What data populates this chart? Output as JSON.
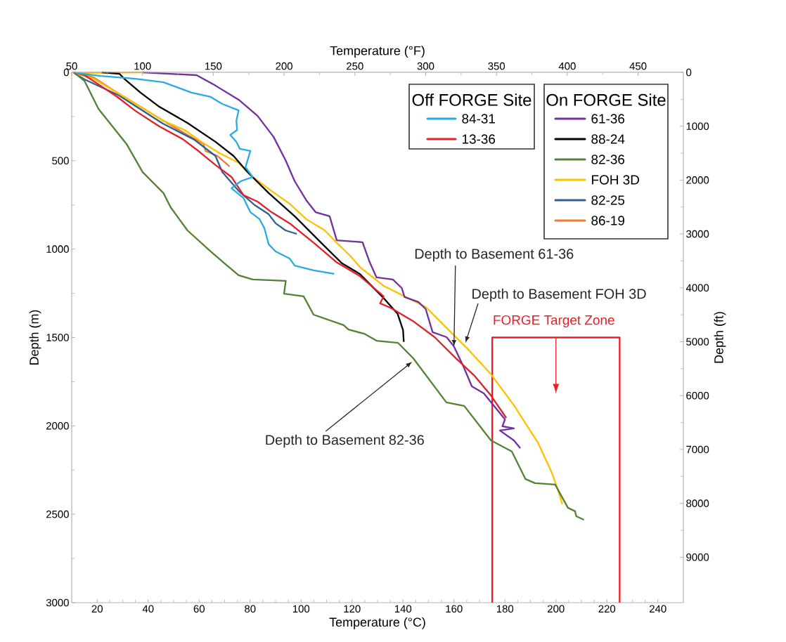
{
  "chart_data": {
    "type": "line",
    "xlabel": "Temperature (°C)",
    "ylabel": "Depth (m)",
    "x2label": "Temperature (°F)",
    "y2label": "Depth (ft)",
    "xlim": [
      10,
      250
    ],
    "xticks": [
      20,
      40,
      60,
      80,
      100,
      120,
      140,
      160,
      180,
      200,
      220,
      240
    ],
    "ylim": [
      3000,
      0
    ],
    "yticks": [
      0,
      500,
      1000,
      1500,
      2000,
      2500,
      3000
    ],
    "x2lim": [
      50,
      482
    ],
    "x2ticks": [
      50,
      100,
      150,
      200,
      250,
      300,
      350,
      400,
      450
    ],
    "y2lim": [
      9843,
      0
    ],
    "y2ticks": [
      0,
      1000,
      2000,
      3000,
      4000,
      5000,
      6000,
      7000,
      8000,
      9000
    ],
    "legend": "top right",
    "series": [
      {
        "name": "84-31",
        "color": "#29abe2",
        "x": [
          11.7,
          21.3,
          35,
          46,
          57,
          64.5,
          69.1,
          75.5,
          74.6,
          74.9,
          72.2,
          74.6,
          76,
          80.1,
          79,
          78.2,
          81,
          76.3,
          72.7,
          77.4,
          80.1,
          83.7,
          85.6,
          87.3,
          90,
          95.5,
          97.5,
          104.9,
          113
        ],
        "values": [
          4,
          20,
          36,
          56,
          115,
          139,
          179,
          215,
          274,
          326,
          354,
          393,
          433,
          445,
          497,
          536,
          592,
          616,
          656,
          711,
          791,
          830,
          882,
          973,
          1013,
          1053,
          1093,
          1120,
          1140
        ]
      },
      {
        "name": "13-36",
        "color": "#e0202a",
        "x": [
          10.8,
          15,
          20.5,
          27.9,
          35,
          44.4,
          53.5,
          59,
          66.4,
          72.7,
          77.4,
          82.9,
          88.4,
          95.5,
          105.7,
          114,
          123,
          132.4,
          131,
          135,
          144.2,
          152.4,
          160.7,
          168,
          174.5,
          180.5
        ],
        "values": [
          0,
          16,
          68,
          139,
          218,
          306,
          377,
          437,
          524,
          592,
          695,
          731,
          791,
          854,
          973,
          1075,
          1152,
          1267,
          1307,
          1331,
          1410,
          1498,
          1617,
          1716,
          1828,
          1955
        ]
      },
      {
        "name": "61-36",
        "color": "#7030a0",
        "x": [
          37.8,
          59,
          66.4,
          75.5,
          82.9,
          89.2,
          93.9,
          97.5,
          102,
          105.7,
          111.2,
          114,
          124.1,
          126.9,
          129.6,
          136,
          139.5,
          140.6,
          146,
          148.9,
          151.6,
          157.1,
          159.9,
          163.5,
          167,
          171.7,
          180,
          179,
          183.5,
          178,
          183.5,
          186
        ],
        "values": [
          0,
          16,
          75,
          155,
          246,
          365,
          497,
          616,
          723,
          791,
          814,
          950,
          961,
          1073,
          1160,
          1172,
          1220,
          1271,
          1299,
          1339,
          1470,
          1498,
          1549,
          1657,
          1776,
          1816,
          1963,
          2002,
          2014,
          2026,
          2082,
          2126
        ]
      },
      {
        "name": "88-24",
        "color": "#000000",
        "x": [
          21.8,
          28.7,
          30.6,
          37,
          44.4,
          55.4,
          66.4,
          73.5,
          79,
          87.3,
          97.5,
          108.5,
          116,
          123,
          132,
          137.9,
          140,
          140.3
        ],
        "values": [
          0,
          8,
          36,
          115,
          195,
          286,
          393,
          473,
          564,
          683,
          814,
          973,
          1080,
          1140,
          1271,
          1367,
          1458,
          1525
        ]
      },
      {
        "name": "82-36",
        "color": "#548235",
        "x": [
          10.8,
          15,
          20.5,
          31.5,
          37.8,
          46,
          48.8,
          55.4,
          64.5,
          70,
          75.5,
          81,
          94,
          93.3,
          101,
          104.9,
          116.7,
          118.6,
          125,
          129.6,
          138,
          144,
          157,
          164,
          174.5,
          182.7,
          188,
          191.8,
          199.7,
          204.7,
          207.5,
          208,
          211
        ],
        "values": [
          0,
          48,
          207,
          405,
          564,
          683,
          763,
          894,
          1013,
          1081,
          1148,
          1172,
          1180,
          1252,
          1267,
          1371,
          1430,
          1455,
          1480,
          1518,
          1530,
          1617,
          1867,
          1887,
          2082,
          2145,
          2300,
          2324,
          2332,
          2463,
          2483,
          2511,
          2531
        ]
      },
      {
        "name": "FOH 3D",
        "color": "#ffc000",
        "x": [
          38.9,
          12,
          10.8,
          18.5,
          27.9,
          37,
          46,
          54.3,
          60.9,
          68,
          75.5,
          81,
          88.4,
          95.5,
          102,
          109.3,
          113,
          119.5,
          123,
          132.4,
          140.6,
          148.9,
          157.1,
          165.4,
          174.5,
          183.5,
          192.9,
          198.4,
          201,
          202.5
        ],
        "values": [
          0,
          3,
          4,
          36,
          115,
          195,
          274,
          326,
          393,
          457,
          512,
          592,
          671,
          743,
          830,
          894,
          950,
          1041,
          1100,
          1208,
          1267,
          1327,
          1446,
          1565,
          1708,
          1883,
          2094,
          2265,
          2372,
          2443
        ]
      },
      {
        "name": "82-25",
        "color": "#2e5f8e",
        "x": [
          10.6,
          15,
          28.5,
          45.8,
          58,
          66.4,
          69.1,
          75.5,
          81.8,
          87.3,
          90,
          93.9,
          98.3
        ],
        "values": [
          0,
          40,
          130,
          290,
          380,
          473,
          564,
          671,
          751,
          803,
          854,
          894,
          914
        ]
      },
      {
        "name": "86-19",
        "color": "#ed7d31",
        "x": [
          10.8,
          18.5,
          27.9,
          37,
          46,
          55.4,
          61.7,
          62.5,
          67.2,
          71.9
        ],
        "values": [
          0,
          28,
          115,
          195,
          274,
          354,
          405,
          445,
          473,
          532
        ]
      },
      {
        "color": "#ee1c24",
        "x": [
          175,
          175,
          225,
          225
        ],
        "values": [
          3000,
          1500,
          1500,
          3000
        ]
      }
    ],
    "annotations": [
      {
        "text": "Depth to Basement 61-36",
        "x": 160,
        "y": 1550
      },
      {
        "text": "Depth to Basement FOH 3D",
        "x": 164.5,
        "y": 1530
      },
      {
        "text": "Depth to Basement 82-36",
        "x": 143.6,
        "y": 1637
      },
      {
        "text": "FORGE Target Zone",
        "x": 200,
        "y": 1500
      },
      "Off FORGE Site",
      "On FORGE Site"
    ]
  }
}
